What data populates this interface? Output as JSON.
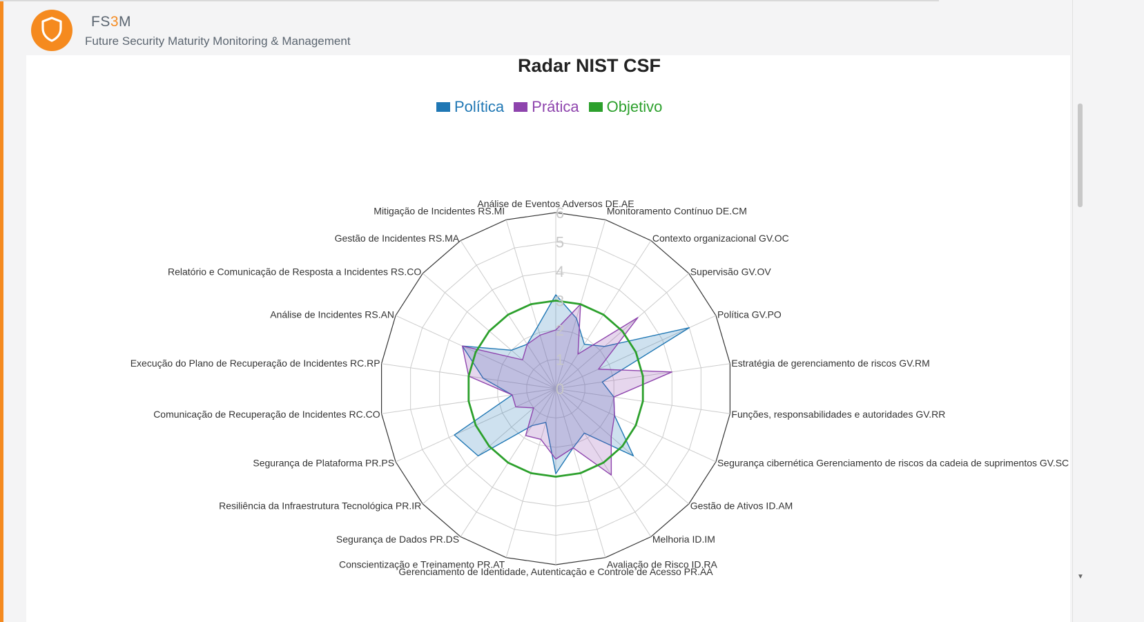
{
  "header": {
    "brand_prefix": "FS",
    "brand_highlight": "3",
    "brand_suffix": "M",
    "subtitle": "Future Security Maturity Monitoring & Management",
    "logo_icon": "shield-icon",
    "accent_color": "#f58a1f"
  },
  "chart_data": {
    "type": "radar",
    "title": "Radar NIST CSF",
    "rmax": 6,
    "ticks": [
      "0",
      "1",
      "2",
      "3",
      "4",
      "5",
      "6"
    ],
    "grid": true,
    "legend_position": "top-center",
    "categories": [
      "Análise de Eventos Adversos DE.AE",
      "Monitoramento Contínuo DE.CM",
      "Contexto organizacional GV.OC",
      "Supervisão GV.OV",
      "Política GV.PO",
      "Estratégia de gerenciamento de riscos GV.RM",
      "Funções, responsabilidades e autoridades GV.RR",
      "Segurança cibernética Gerenciamento de riscos da cadeia de suprimentos GV.SC",
      "Gestão de Ativos ID.AM",
      "Melhoria ID.IM",
      "Avaliação de Risco ID.RA",
      "Gerenciamento de Identidade, Autenticação e Controle de Acesso PR.AA",
      "Conscientização e Treinamento PR.AT",
      "Segurança de Dados PR.DS",
      "Resiliência da Infraestrutura Tecnológica PR.IR",
      "Segurança de Plataforma PR.PS",
      "Comunicação de Recuperação de Incidentes RC.CO",
      "Execução do Plano de Recuperação de Incidentes RC.RP",
      "Análise de Incidentes RS.AN",
      "Relatório e Comunicação de Resposta a Incidentes RS.CO",
      "Gestão de Incidentes RS.MA",
      "Mitigação de Incidentes RS.MI"
    ],
    "series": [
      {
        "name": "Política",
        "color": "#1f77b4",
        "fill": true,
        "values": [
          3.2,
          2.5,
          1.8,
          2.2,
          5.0,
          1.6,
          2.0,
          2.2,
          3.5,
          1.8,
          2.1,
          2.9,
          1.2,
          1.5,
          3.5,
          3.8,
          1.5,
          2.5,
          3.5,
          2.0,
          1.8,
          2.2
        ]
      },
      {
        "name": "Prática",
        "color": "#8e44ad",
        "fill": true,
        "values": [
          2.0,
          3.0,
          1.4,
          3.7,
          1.6,
          4.0,
          2.0,
          2.2,
          2.5,
          3.5,
          2.1,
          2.4,
          1.8,
          1.9,
          1.0,
          1.5,
          1.5,
          3.0,
          3.5,
          1.5,
          1.8,
          1.9
        ]
      },
      {
        "name": "Objetivo",
        "color": "#2ca02c",
        "fill": false,
        "values": [
          3.0,
          3.0,
          3.0,
          3.0,
          3.0,
          3.0,
          3.0,
          3.0,
          3.0,
          3.0,
          3.0,
          3.0,
          3.0,
          3.0,
          3.0,
          3.0,
          3.0,
          3.0,
          3.0,
          3.0,
          3.0,
          3.0
        ]
      }
    ]
  }
}
